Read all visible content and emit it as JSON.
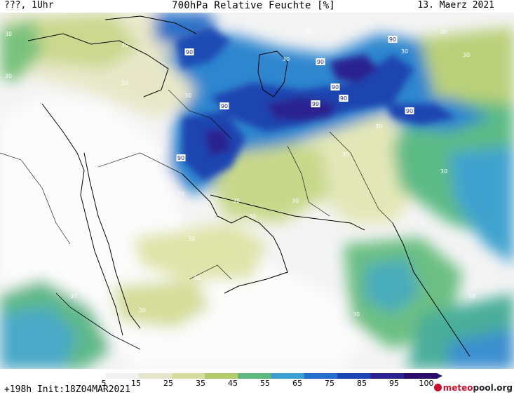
{
  "header": {
    "left": "???, 1Uhr",
    "title": "700hPa Relative Feuchte [%]",
    "date": "13. Maerz 2021"
  },
  "footer": {
    "run_info": "+198h  Init:18Z04MAR2021",
    "brand_prefix": "meteo",
    "brand_suffix": "pool.org"
  },
  "legend": {
    "labels": [
      "5",
      "15",
      "25",
      "35",
      "45",
      "55",
      "65",
      "75",
      "85",
      "95",
      "100"
    ],
    "colors": [
      "#ffffff",
      "#f1f1f1",
      "#e6e6cf",
      "#d6dd9e",
      "#b5cc6b",
      "#5fb87d",
      "#3a9fd2",
      "#236ec9",
      "#1b45b2",
      "#2a2391",
      "#2b0c6e"
    ]
  },
  "contour_labels": [
    "30",
    "30",
    "30",
    "30",
    "30",
    "30",
    "30",
    "30",
    "30",
    "30",
    "30",
    "30",
    "30",
    "30",
    "30",
    "30",
    "30",
    "30",
    "30",
    "30",
    "30",
    "30",
    "30",
    "30",
    "30",
    "90",
    "90",
    "90",
    "90",
    "90",
    "90",
    "90",
    "90",
    "99"
  ]
}
